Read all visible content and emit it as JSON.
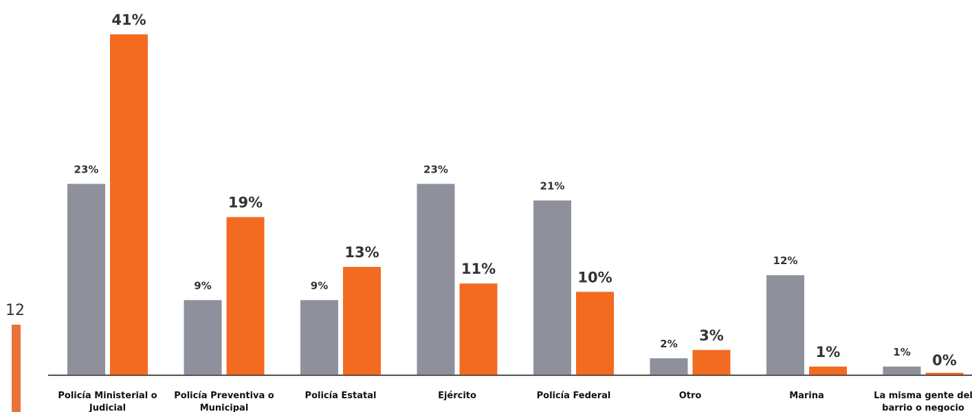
{
  "chart_data": {
    "type": "bar",
    "categories": [
      [
        "Policía Ministerial o",
        "Judicial"
      ],
      [
        "Policía Preventiva o",
        "Municipal"
      ],
      [
        "Policía Estatal"
      ],
      [
        "Ejército"
      ],
      [
        "Policía Federal"
      ],
      [
        "Otro"
      ],
      [
        "Marina"
      ],
      [
        "La misma gente del",
        "barrio o negocio"
      ]
    ],
    "series": [
      {
        "color": "#8e919c",
        "values": [
          23,
          9,
          9,
          23,
          21,
          2,
          12,
          1
        ],
        "value_labels": [
          "23%",
          "9%",
          "9%",
          "23%",
          "21%",
          "2%",
          "12%",
          "1%"
        ]
      },
      {
        "color": "#f26b21",
        "values": [
          41,
          19,
          13,
          11,
          10,
          3,
          1,
          0
        ],
        "value_labels": [
          "41%",
          "19%",
          "13%",
          "11%",
          "10%",
          "3%",
          "1%",
          "0%"
        ]
      }
    ]
  },
  "side_label": "12"
}
